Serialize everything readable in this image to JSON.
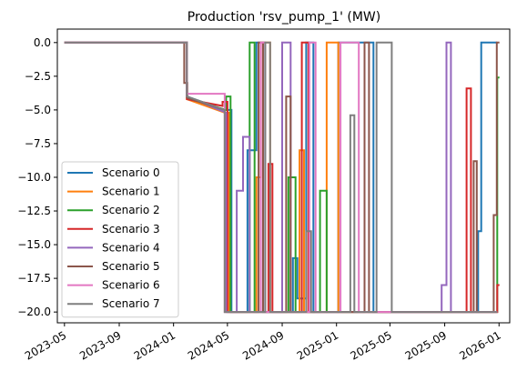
{
  "chart_data": {
    "type": "line",
    "title": "Production 'rsv_pump_1' (MW)",
    "xlabel": "",
    "ylabel": "",
    "ylim": [
      -20.8,
      1.0
    ],
    "xlim": [
      "2023-04-15",
      "2026-01-25"
    ],
    "grid": false,
    "legend_position": "lower-left",
    "x_ticks": [
      "2023-05",
      "2023-09",
      "2024-01",
      "2024-05",
      "2024-09",
      "2025-01",
      "2025-05",
      "2025-09",
      "2026-01"
    ],
    "y_ticks": [
      0.0,
      -2.5,
      -5.0,
      -7.5,
      -10.0,
      -12.5,
      -15.0,
      -17.5,
      -20.0
    ],
    "y_tick_labels": [
      "0.0",
      "−2.5",
      "−5.0",
      "−7.5",
      "−10.0",
      "−12.5",
      "−15.0",
      "−17.5",
      "−20.0"
    ],
    "series": [
      {
        "name": "Scenario 0",
        "color": "#1f77b4",
        "points": [
          [
            "2023-05-01",
            0
          ],
          [
            "2024-01-31",
            0
          ],
          [
            "2024-01-31",
            -4.0
          ],
          [
            "2024-04-25",
            -5.0
          ],
          [
            "2024-05-10",
            -5.0
          ],
          [
            "2024-05-10",
            -20.0
          ],
          [
            "2024-06-15",
            -20.0
          ],
          [
            "2024-06-15",
            -8.0
          ],
          [
            "2024-07-05",
            -8.0
          ],
          [
            "2024-07-05",
            0.0
          ],
          [
            "2024-07-25",
            0.0
          ],
          [
            "2024-07-25",
            -20.0
          ],
          [
            "2024-09-25",
            -20.0
          ],
          [
            "2024-09-25",
            -16.0
          ],
          [
            "2024-10-05",
            -16.0
          ],
          [
            "2024-10-05",
            -19.0
          ],
          [
            "2024-10-25",
            -19.0
          ],
          [
            "2024-10-25",
            0.0
          ],
          [
            "2024-11-10",
            0.0
          ],
          [
            "2024-11-10",
            -20.0
          ],
          [
            "2025-01-05",
            -20.0
          ],
          [
            "2025-01-05",
            0.0
          ],
          [
            "2025-03-25",
            0.0
          ],
          [
            "2025-03-25",
            -20.0
          ],
          [
            "2025-11-15",
            -20.0
          ],
          [
            "2025-11-15",
            -14.0
          ],
          [
            "2025-11-22",
            -14.0
          ],
          [
            "2025-11-22",
            0.0
          ],
          [
            "2025-12-28",
            0.0
          ]
        ]
      },
      {
        "name": "Scenario 1",
        "color": "#ff7f0e",
        "points": [
          [
            "2023-05-01",
            0
          ],
          [
            "2024-01-31",
            0
          ],
          [
            "2024-01-31",
            -4.2
          ],
          [
            "2024-04-25",
            -5.2
          ],
          [
            "2024-05-05",
            -5.2
          ],
          [
            "2024-05-05",
            -20.0
          ],
          [
            "2024-07-05",
            -20.0
          ],
          [
            "2024-07-05",
            -10.0
          ],
          [
            "2024-07-15",
            -10.0
          ],
          [
            "2024-07-15",
            0.0
          ],
          [
            "2024-08-05",
            0.0
          ],
          [
            "2024-08-05",
            -20.0
          ],
          [
            "2024-10-10",
            -20.0
          ],
          [
            "2024-10-10",
            -8.0
          ],
          [
            "2024-10-20",
            -8.0
          ],
          [
            "2024-10-20",
            -20.0
          ],
          [
            "2024-12-10",
            -20.0
          ],
          [
            "2024-12-10",
            0.0
          ],
          [
            "2025-01-05",
            0.0
          ],
          [
            "2025-01-05",
            -20.0
          ],
          [
            "2025-12-28",
            -20.0
          ]
        ]
      },
      {
        "name": "Scenario 2",
        "color": "#2ca02c",
        "points": [
          [
            "2023-05-01",
            0
          ],
          [
            "2024-01-31",
            0
          ],
          [
            "2024-01-31",
            -4.1
          ],
          [
            "2024-04-28",
            -5.0
          ],
          [
            "2024-04-28",
            -4.0
          ],
          [
            "2024-05-08",
            -4.0
          ],
          [
            "2024-05-08",
            -20.0
          ],
          [
            "2024-06-20",
            -20.0
          ],
          [
            "2024-06-20",
            0.0
          ],
          [
            "2024-07-01",
            0.0
          ],
          [
            "2024-07-01",
            -20.0
          ],
          [
            "2024-09-15",
            -20.0
          ],
          [
            "2024-09-15",
            -10.0
          ],
          [
            "2024-10-01",
            -10.0
          ],
          [
            "2024-10-01",
            -20.0
          ],
          [
            "2024-11-25",
            -20.0
          ],
          [
            "2024-11-25",
            -11.0
          ],
          [
            "2024-12-10",
            -11.0
          ],
          [
            "2024-12-10",
            -20.0
          ],
          [
            "2025-12-28",
            -20.0
          ],
          [
            "2025-12-28",
            -2.6
          ],
          [
            "2026-01-02",
            -2.6
          ]
        ]
      },
      {
        "name": "Scenario 3",
        "color": "#d62728",
        "points": [
          [
            "2023-05-01",
            0
          ],
          [
            "2024-01-31",
            0
          ],
          [
            "2024-01-31",
            -4.2
          ],
          [
            "2024-04-20",
            -4.7
          ],
          [
            "2024-04-20",
            -4.4
          ],
          [
            "2024-05-01",
            -4.4
          ],
          [
            "2024-05-01",
            -20.0
          ],
          [
            "2024-08-01",
            -20.0
          ],
          [
            "2024-08-01",
            -9.0
          ],
          [
            "2024-08-10",
            -9.0
          ],
          [
            "2024-08-10",
            -20.0
          ],
          [
            "2024-10-15",
            -20.0
          ],
          [
            "2024-10-15",
            0.0
          ],
          [
            "2024-10-30",
            0.0
          ],
          [
            "2024-10-30",
            -20.0
          ],
          [
            "2025-10-20",
            -20.0
          ],
          [
            "2025-10-20",
            -3.4
          ],
          [
            "2025-10-30",
            -3.4
          ],
          [
            "2025-10-30",
            -20.0
          ],
          [
            "2025-12-28",
            -20.0
          ],
          [
            "2025-12-28",
            -18.0
          ],
          [
            "2026-01-02",
            -18.0
          ]
        ]
      },
      {
        "name": "Scenario 4",
        "color": "#9467bd",
        "points": [
          [
            "2023-05-01",
            0
          ],
          [
            "2024-01-31",
            0
          ],
          [
            "2024-01-31",
            -4.0
          ],
          [
            "2024-04-28",
            -5.2
          ],
          [
            "2024-04-28",
            -20.0
          ],
          [
            "2024-05-22",
            -20.0
          ],
          [
            "2024-05-22",
            -11.0
          ],
          [
            "2024-06-05",
            -11.0
          ],
          [
            "2024-06-05",
            -7.0
          ],
          [
            "2024-06-20",
            -7.0
          ],
          [
            "2024-06-20",
            -20.0
          ],
          [
            "2024-09-01",
            -20.0
          ],
          [
            "2024-09-01",
            0.0
          ],
          [
            "2024-09-20",
            0.0
          ],
          [
            "2024-09-20",
            -20.0
          ],
          [
            "2025-08-25",
            -20.0
          ],
          [
            "2025-08-25",
            -18.0
          ],
          [
            "2025-09-05",
            -18.0
          ],
          [
            "2025-09-05",
            0.0
          ],
          [
            "2025-09-15",
            0.0
          ],
          [
            "2025-09-15",
            -20.0
          ],
          [
            "2025-12-28",
            -20.0
          ]
        ]
      },
      {
        "name": "Scenario 5",
        "color": "#8c564b",
        "points": [
          [
            "2023-05-01",
            0
          ],
          [
            "2024-01-25",
            0
          ],
          [
            "2024-01-25",
            -3.0
          ],
          [
            "2024-02-01",
            -3.0
          ],
          [
            "2024-02-01",
            -4.1
          ],
          [
            "2024-04-25",
            -5.0
          ],
          [
            "2024-04-25",
            -20.0
          ],
          [
            "2024-07-10",
            -20.0
          ],
          [
            "2024-07-10",
            0.0
          ],
          [
            "2024-07-20",
            0.0
          ],
          [
            "2024-07-20",
            -20.0
          ],
          [
            "2024-09-10",
            -20.0
          ],
          [
            "2024-09-10",
            -4.0
          ],
          [
            "2024-09-20",
            -4.0
          ],
          [
            "2024-09-20",
            -20.0
          ],
          [
            "2025-03-05",
            -20.0
          ],
          [
            "2025-03-05",
            0.0
          ],
          [
            "2025-03-15",
            0.0
          ],
          [
            "2025-03-15",
            -20.0
          ],
          [
            "2025-11-05",
            -20.0
          ],
          [
            "2025-11-05",
            -8.8
          ],
          [
            "2025-11-12",
            -8.8
          ],
          [
            "2025-11-12",
            -20.0
          ],
          [
            "2025-12-20",
            -20.0
          ],
          [
            "2025-12-20",
            -12.8
          ],
          [
            "2025-12-27",
            -12.8
          ],
          [
            "2025-12-27",
            0.0
          ],
          [
            "2026-01-02",
            0.0
          ]
        ]
      },
      {
        "name": "Scenario 6",
        "color": "#e377c2",
        "points": [
          [
            "2023-05-01",
            0
          ],
          [
            "2024-01-31",
            0
          ],
          [
            "2024-01-31",
            -3.8
          ],
          [
            "2024-03-10",
            -3.8
          ],
          [
            "2024-03-10",
            -3.8
          ],
          [
            "2024-04-25",
            -3.8
          ],
          [
            "2024-04-25",
            -20.0
          ],
          [
            "2024-07-15",
            -20.0
          ],
          [
            "2024-07-15",
            0.0
          ],
          [
            "2024-07-25",
            0.0
          ],
          [
            "2024-07-25",
            -20.0
          ],
          [
            "2024-11-01",
            -20.0
          ],
          [
            "2024-11-01",
            0.0
          ],
          [
            "2024-11-15",
            0.0
          ],
          [
            "2024-11-15",
            -20.0
          ],
          [
            "2025-01-10",
            -20.0
          ],
          [
            "2025-01-10",
            0.0
          ],
          [
            "2025-02-20",
            0.0
          ],
          [
            "2025-02-20",
            -20.0
          ],
          [
            "2025-12-28",
            -20.0
          ]
        ]
      },
      {
        "name": "Scenario 7",
        "color": "#7f7f7f",
        "points": [
          [
            "2023-05-01",
            0
          ],
          [
            "2024-01-31",
            0
          ],
          [
            "2024-01-31",
            -4.0
          ],
          [
            "2024-04-25",
            -5.0
          ],
          [
            "2024-04-25",
            -20.0
          ],
          [
            "2024-07-25",
            -20.0
          ],
          [
            "2024-07-25",
            0.0
          ],
          [
            "2024-08-05",
            0.0
          ],
          [
            "2024-08-05",
            -20.0
          ],
          [
            "2024-10-25",
            -20.0
          ],
          [
            "2024-10-25",
            -14.0
          ],
          [
            "2024-11-05",
            -14.0
          ],
          [
            "2024-11-05",
            -20.0
          ],
          [
            "2025-02-01",
            -20.0
          ],
          [
            "2025-02-01",
            -5.4
          ],
          [
            "2025-02-10",
            -5.4
          ],
          [
            "2025-02-10",
            -20.0
          ],
          [
            "2025-04-01",
            -20.0
          ],
          [
            "2025-04-01",
            0.0
          ],
          [
            "2025-05-05",
            0.0
          ],
          [
            "2025-05-05",
            -20.0
          ],
          [
            "2025-12-28",
            -20.0
          ]
        ]
      }
    ]
  }
}
